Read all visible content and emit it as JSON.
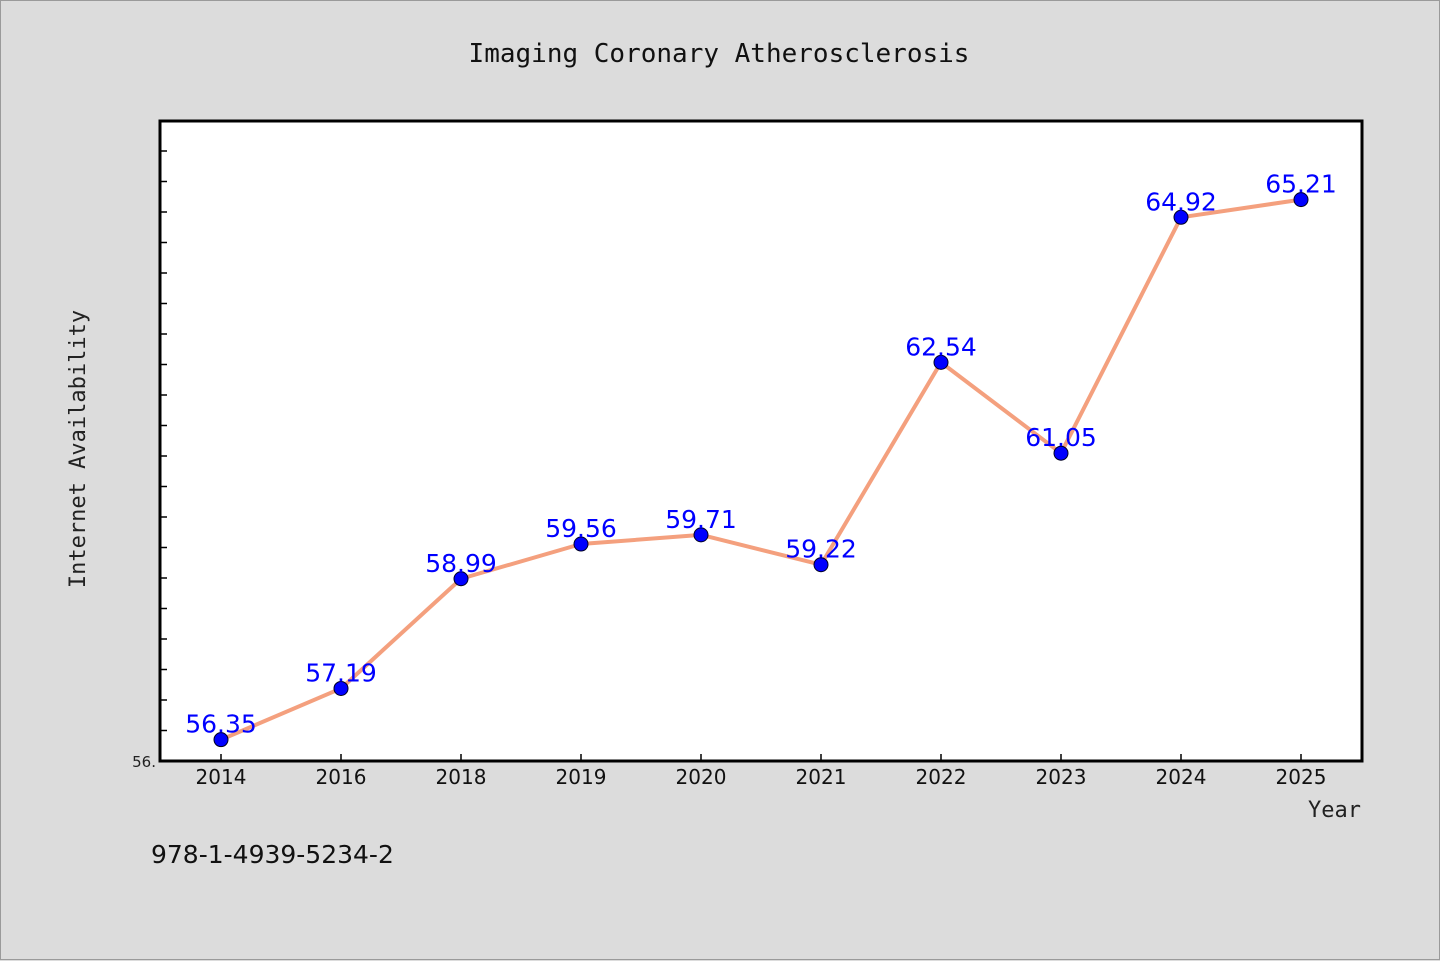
{
  "colors": {
    "background": "#dcdcdc",
    "plot_background": "#ffffff",
    "line": "#f4a07e",
    "marker": "#0000ff",
    "data_label": "#0000ff"
  },
  "footer": {
    "isbn": "978-1-4939-5234-2"
  },
  "chart_data": {
    "type": "line",
    "title": "Imaging Coronary Atherosclerosis",
    "xlabel": "Year",
    "ylabel": "Internet Availability",
    "categories": [
      "2014",
      "2016",
      "2018",
      "2019",
      "2020",
      "2021",
      "2022",
      "2023",
      "2024",
      "2025"
    ],
    "series": [
      {
        "values": [
          56.35,
          57.19,
          58.99,
          59.56,
          59.71,
          59.22,
          62.54,
          61.05,
          64.92,
          65.21
        ]
      }
    ],
    "data_labels": [
      "56.35",
      "57.19",
      "58.99",
      "59.56",
      "59.71",
      "59.22",
      "62.54",
      "61.05",
      "64.92",
      "65.21"
    ],
    "ylim": [
      56.0,
      66.5
    ],
    "y_min_label": "56.",
    "grid": false,
    "legend": "none"
  }
}
